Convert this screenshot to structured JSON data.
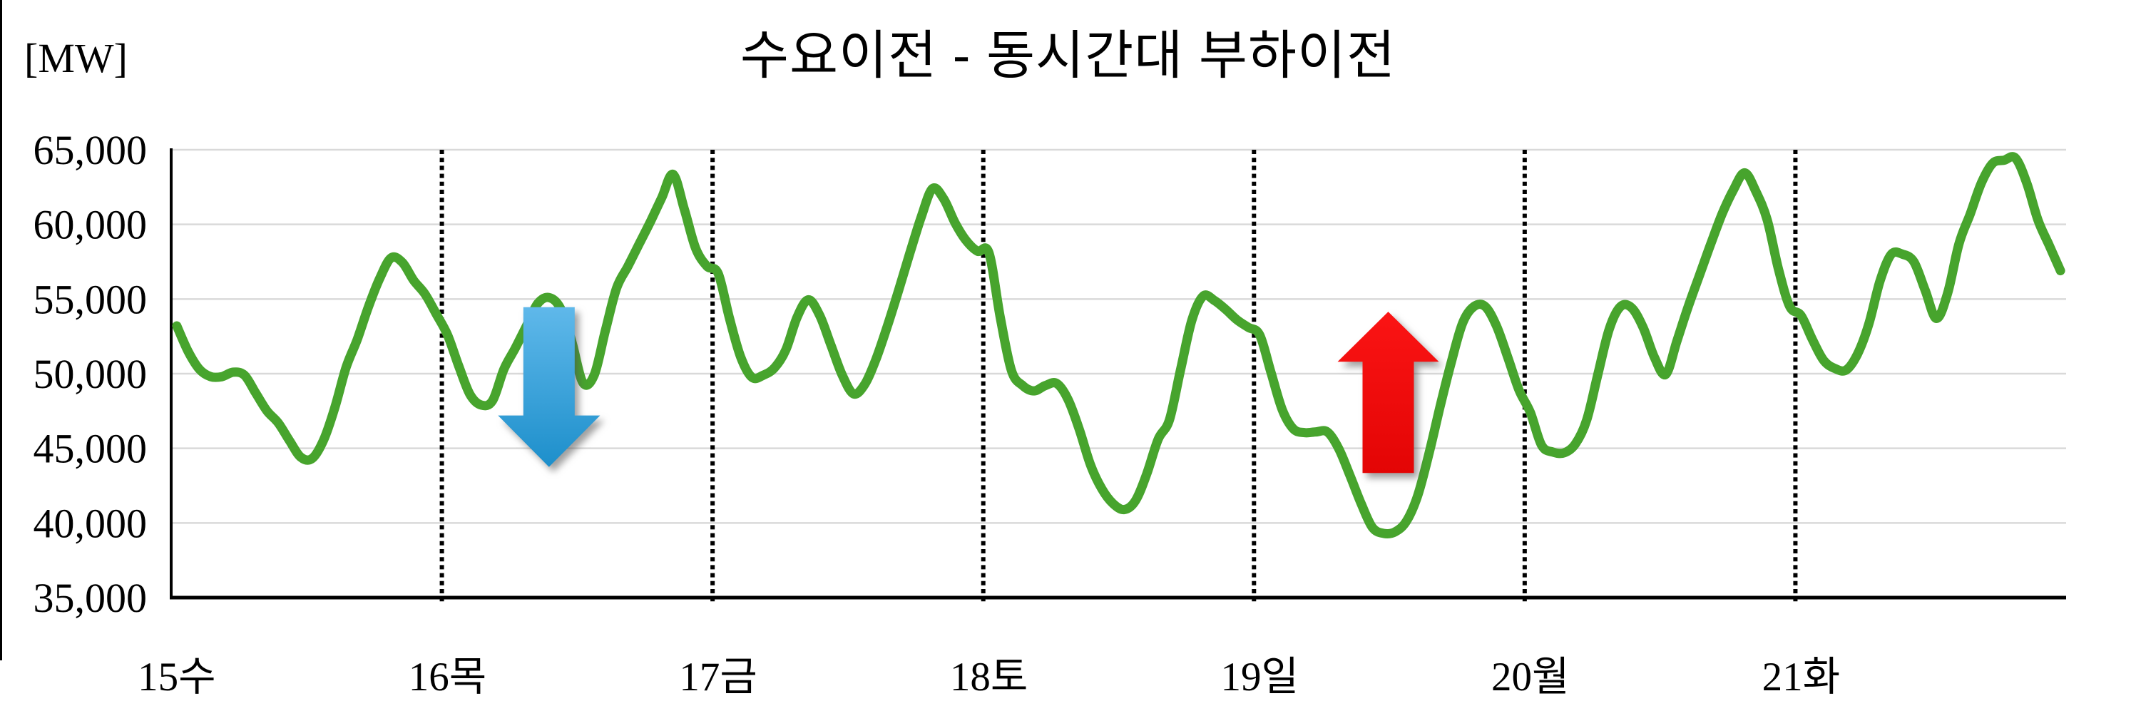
{
  "title": "수요이전 - 동시간대 부하이전",
  "y_axis": {
    "unit_label": "[MW]",
    "ticks": [
      "65,000",
      "60,000",
      "55,000",
      "50,000",
      "45,000",
      "40,000",
      "35,000"
    ]
  },
  "chart_data": {
    "type": "line",
    "title": "수요이전 - 동시간대 부하이전",
    "ylabel": "[MW]",
    "ylim": [
      35000,
      65000
    ],
    "ytick_step": 5000,
    "yticks": [
      "65,000",
      "60,000",
      "55,000",
      "50,000",
      "45,000",
      "40,000",
      "35,000"
    ],
    "grid": {
      "horizontal": true,
      "vertical": false,
      "color": "#D9D9D9"
    },
    "day_separators": {
      "style": "dotted",
      "color": "#000000"
    },
    "axis_color": "#000000",
    "line_color": "#47A42D",
    "sampling": "hourly",
    "categories": [
      "15수",
      "16목",
      "17금",
      "18토",
      "19일",
      "20월",
      "21화"
    ],
    "days": [
      {
        "label": "15수",
        "values": [
          53200,
          51500,
          50300,
          49800,
          49800,
          50100,
          49900,
          48700,
          47500,
          46700,
          45500,
          44400,
          44320,
          45530,
          47700,
          50400,
          52300,
          54500,
          56400,
          57760,
          57450,
          56250,
          55340,
          54000
        ]
      },
      {
        "label": "16목",
        "values": [
          52600,
          50500,
          48600,
          47900,
          48200,
          50300,
          51700,
          53200,
          54700,
          55100,
          54400,
          52200,
          49400,
          49900,
          52900,
          55750,
          57200,
          58700,
          60200,
          61800,
          63350,
          61000,
          58400,
          57200
        ]
      },
      {
        "label": "17금",
        "values": [
          56700,
          53700,
          51100,
          49750,
          49900,
          50400,
          51600,
          53800,
          54950,
          53900,
          51900,
          49900,
          48650,
          49300,
          51000,
          53200,
          55600,
          58100,
          60500,
          62400,
          61700,
          60100,
          58900,
          58200
        ]
      },
      {
        "label": "18토",
        "values": [
          58100,
          53800,
          50200,
          49200,
          48850,
          49200,
          49350,
          48300,
          46300,
          43900,
          42300,
          41300,
          40900,
          41500,
          43300,
          45600,
          46900,
          50300,
          53600,
          55200,
          54900,
          54300,
          53600,
          53100
        ]
      },
      {
        "label": "19일",
        "values": [
          52600,
          50100,
          47600,
          46300,
          46050,
          46100,
          46100,
          45000,
          43200,
          41300,
          39700,
          39300,
          39400,
          40100,
          41800,
          44600,
          47800,
          50800,
          53400,
          54500,
          54500,
          53200,
          51100,
          48900
        ]
      },
      {
        "label": "20월",
        "values": [
          47400,
          45200,
          44750,
          44700,
          45300,
          46900,
          50000,
          53000,
          54500,
          54400,
          53100,
          51100,
          49950,
          52200,
          54500,
          56600,
          58700,
          60700,
          62300,
          63450,
          62200,
          60300,
          57000,
          54500
        ]
      },
      {
        "label": "21화",
        "values": [
          53900,
          52300,
          50900,
          50350,
          50250,
          51300,
          53300,
          56200,
          58000,
          58000,
          57500,
          55600,
          53700,
          55400,
          58700,
          60700,
          62800,
          64100,
          64300,
          64450,
          62800,
          60300,
          58600,
          56900
        ]
      }
    ],
    "annotations": [
      {
        "name": "load-decrease-arrow",
        "direction": "down",
        "hour": 33.0,
        "mw_tail": 54450,
        "mw_head_base": 47200,
        "mw_tip": 43750,
        "body_width_hours": 4.55,
        "head_width_hours": 9.05,
        "gradient_top": "#5FB8EA",
        "gradient_bottom": "#1D8FCB"
      },
      {
        "name": "load-increase-arrow",
        "direction": "up",
        "hour": 107.4,
        "mw_tail": 43350,
        "mw_head_base": 50800,
        "mw_tip": 54150,
        "body_width_hours": 4.55,
        "head_width_hours": 8.98,
        "gradient_top": "#FB1414",
        "gradient_bottom": "#E30505"
      }
    ]
  }
}
